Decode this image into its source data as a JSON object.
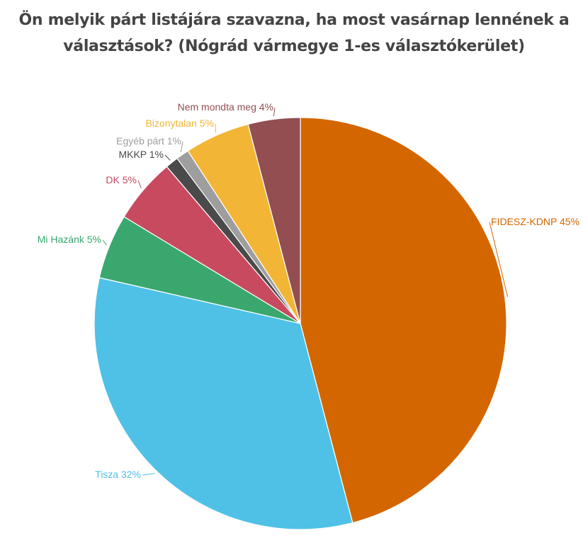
{
  "chart_data": {
    "type": "pie",
    "title": "Ön melyik párt listájára szavazna, ha most vasárnap lennének a választások? (Nógrád vármegye 1-es választókerület)",
    "start": "top",
    "direction": "clockwise",
    "slices": [
      {
        "label": "FIDESZ-KDNP",
        "value": 45,
        "display": "FIDESZ-KDNP 45%",
        "color": "#d46600"
      },
      {
        "label": "Tisza",
        "value": 32,
        "display": "Tisza 32%",
        "color": "#4fc1e6"
      },
      {
        "label": "Mi Hazánk",
        "value": 5,
        "display": "Mi Hazánk 5%",
        "color": "#3aa86e"
      },
      {
        "label": "DK",
        "value": 5,
        "display": "DK 5%",
        "color": "#c84a5f"
      },
      {
        "label": "MKKP",
        "value": 1,
        "display": "MKKP 1%",
        "color": "#4a4a4a"
      },
      {
        "label": "Egyéb párt",
        "value": 1,
        "display": "Egyéb párt 1%",
        "color": "#9e9e9e"
      },
      {
        "label": "Bizonytalan",
        "value": 5,
        "display": "Bizonytalan 5%",
        "color": "#f2b535"
      },
      {
        "label": "Nem mondta meg",
        "value": 4,
        "display": "Nem mondta meg 4%",
        "color": "#924e51"
      }
    ]
  }
}
